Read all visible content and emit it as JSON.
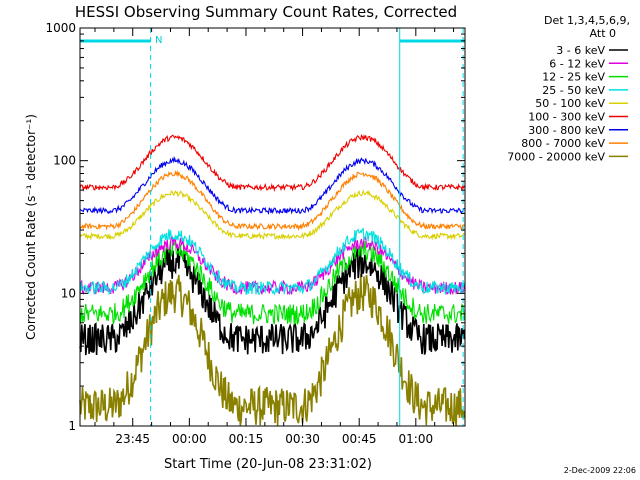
{
  "chart_data": {
    "type": "line",
    "title": "HESSI Observing Summary Count Rates, Corrected",
    "xlabel": "Start Time (20-Jun-08 23:31:02)",
    "ylabel": "Corrected Count Rate (s⁻¹ detector⁻¹)",
    "yscale": "log",
    "ylim": [
      1,
      1000
    ],
    "xlim_minutes_after_start": [
      0,
      102
    ],
    "x_tick_labels": [
      "23:45",
      "00:00",
      "00:15",
      "00:30",
      "00:45",
      "01:00"
    ],
    "x_tick_minutes_after_start": [
      13.97,
      28.97,
      43.97,
      58.97,
      73.97,
      88.97
    ],
    "y_tick_labels": [
      "1",
      "10",
      "100",
      "1000"
    ],
    "y_tick_values": [
      1,
      10,
      100,
      1000
    ],
    "legend_header_1": "Det 1,3,4,5,6,9,",
    "legend_header_2": "Att 0",
    "legend_position": "right",
    "timestamp": "2-Dec-2009 22:06",
    "annotations": [
      {
        "text": "N",
        "x_minute": 19.1,
        "kind": "night-marker"
      }
    ],
    "night_intervals_minutes": [
      [
        0,
        18.7
      ],
      [
        84.7,
        102
      ]
    ],
    "dashed_marker_minutes": [
      18.7,
      101.5
    ],
    "solid_marker_minutes": [
      84.7
    ],
    "series": [
      {
        "name": "3 - 6 keV",
        "color": "#000000",
        "base": 4.5,
        "peak": 17,
        "noise": 0.12
      },
      {
        "name": "6 - 12 keV",
        "color": "#e000e0",
        "base": 11,
        "peak": 24,
        "noise": 0.05
      },
      {
        "name": "12 - 25 keV",
        "color": "#00e000",
        "base": 7,
        "peak": 21,
        "noise": 0.08
      },
      {
        "name": "25 - 50 keV",
        "color": "#00e0e0",
        "base": 11,
        "peak": 28,
        "noise": 0.05
      },
      {
        "name": "50 - 100 keV",
        "color": "#d8d000",
        "base": 27,
        "peak": 57,
        "noise": 0.02
      },
      {
        "name": "100 - 300 keV",
        "color": "#ee0000",
        "base": 63,
        "peak": 150,
        "noise": 0.02
      },
      {
        "name": "300 - 800 keV",
        "color": "#0000ee",
        "base": 42,
        "peak": 100,
        "noise": 0.02
      },
      {
        "name": "800 - 7000 keV",
        "color": "#ff8000",
        "base": 32,
        "peak": 80,
        "noise": 0.02
      },
      {
        "name": "7000 - 20000 keV",
        "color": "#8a8000",
        "base": 1.4,
        "peak": 10,
        "noise": 0.15
      }
    ],
    "peak_centers_minutes": [
      25,
      75
    ],
    "peak_halfwidth_minutes": 12
  }
}
